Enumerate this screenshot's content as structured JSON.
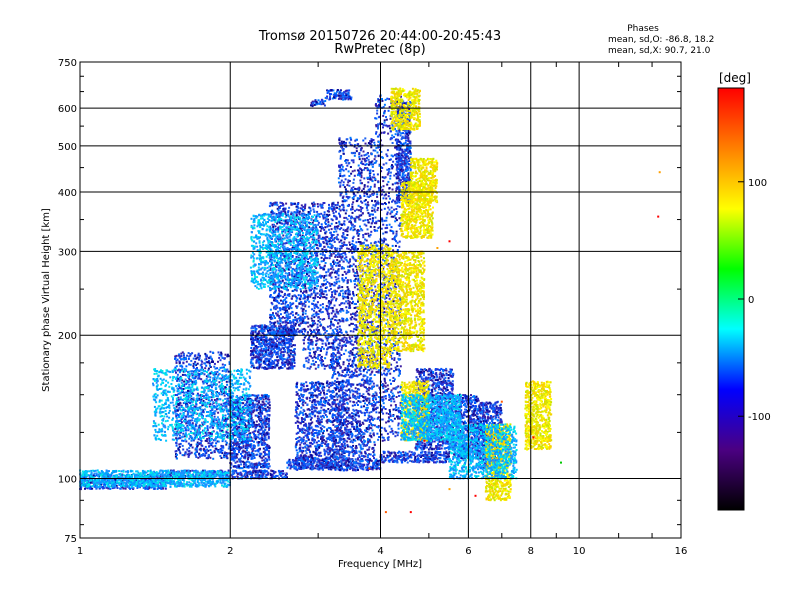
{
  "chart_data": {
    "type": "scatter",
    "title": "Tromsø 20150726 20:44:00-20:45:43",
    "subtitle": "RwPretec (8p)",
    "xlabel": "Frequency [MHz]",
    "ylabel": "Stationary phase Virtual Height [km]",
    "x_scale": "log",
    "y_scale": "log",
    "xlim": [
      1,
      16
    ],
    "ylim": [
      75,
      750
    ],
    "x_ticks": [
      1,
      2,
      4,
      6,
      8,
      10,
      16
    ],
    "x_tick_labels": [
      "1",
      "2",
      "4",
      "6",
      "8",
      "10",
      "16"
    ],
    "y_ticks": [
      75,
      100,
      200,
      300,
      400,
      500,
      600,
      750
    ],
    "y_tick_labels": [
      "75",
      "100",
      "200",
      "300",
      "400",
      "500",
      "600",
      "750"
    ],
    "grid": true,
    "legend": {
      "title": "Phases",
      "lines": [
        "mean, sd,O: -86.8, 18.2",
        "mean, sd,X: 90.7, 21.0"
      ],
      "placement": "top-right"
    },
    "colorbar": {
      "label": "[deg]",
      "range": [
        -180,
        180
      ],
      "ticks": [
        -100,
        0,
        100
      ],
      "tick_labels": [
        "-100",
        "0",
        "100"
      ],
      "colormap": [
        "#000000",
        "#4b0082",
        "#0000ff",
        "#00ffff",
        "#00ff00",
        "#ffff00",
        "#ff8000",
        "#ff0000"
      ]
    },
    "series": [
      {
        "mode": "O",
        "color": "#1e3cdc",
        "mean_phase": -86.8,
        "sd": 18.2,
        "clusters": [
          {
            "f": [
              1.0,
              1.5
            ],
            "h": [
              95,
              102
            ]
          },
          {
            "f": [
              1.5,
              2.6
            ],
            "h": [
              100,
              104
            ]
          },
          {
            "f": [
              2.6,
              4.0
            ],
            "h": [
              104,
              110
            ]
          },
          {
            "f": [
              4.0,
              5.5
            ],
            "h": [
              108,
              114
            ]
          },
          {
            "f": [
              1.55,
              2.0
            ],
            "h": [
              110,
              185
            ]
          },
          {
            "f": [
              2.0,
              2.4
            ],
            "h": [
              105,
              150
            ]
          },
          {
            "f": [
              2.2,
              2.7
            ],
            "h": [
              170,
              210
            ]
          },
          {
            "f": [
              2.4,
              2.8
            ],
            "h": [
              200,
              380
            ]
          },
          {
            "f": [
              2.7,
              3.4
            ],
            "h": [
              105,
              160
            ]
          },
          {
            "f": [
              2.8,
              3.3
            ],
            "h": [
              170,
              380
            ]
          },
          {
            "f": [
              3.2,
              3.9
            ],
            "h": [
              110,
              200
            ]
          },
          {
            "f": [
              3.3,
              3.9
            ],
            "h": [
              200,
              520
            ]
          },
          {
            "f": [
              3.1,
              3.5
            ],
            "h": [
              625,
              655
            ]
          },
          {
            "f": [
              3.9,
              4.4
            ],
            "h": [
              120,
              640
            ]
          },
          {
            "f": [
              4.3,
              4.6
            ],
            "h": [
              380,
              620
            ]
          },
          {
            "f": [
              5.6,
              6.3
            ],
            "h": [
              110,
              150
            ]
          },
          {
            "f": [
              6.3,
              7.0
            ],
            "h": [
              105,
              145
            ]
          },
          {
            "f": [
              4.7,
              5.6
            ],
            "h": [
              115,
              170
            ]
          },
          {
            "f": [
              2.9,
              3.1
            ],
            "h": [
              605,
              625
            ]
          }
        ]
      },
      {
        "mode": "X",
        "color": "#e6e600",
        "mean_phase": 90.7,
        "sd": 21.0,
        "clusters": [
          {
            "f": [
              3.6,
              4.2
            ],
            "h": [
              170,
              310
            ]
          },
          {
            "f": [
              4.2,
              4.9
            ],
            "h": [
              185,
              300
            ]
          },
          {
            "f": [
              4.4,
              5.1
            ],
            "h": [
              320,
              420
            ]
          },
          {
            "f": [
              4.6,
              5.2
            ],
            "h": [
              380,
              470
            ]
          },
          {
            "f": [
              4.2,
              4.8
            ],
            "h": [
              540,
              660
            ]
          },
          {
            "f": [
              4.4,
              5.0
            ],
            "h": [
              120,
              160
            ]
          },
          {
            "f": [
              7.8,
              8.8
            ],
            "h": [
              115,
              160
            ]
          },
          {
            "f": [
              6.5,
              7.3
            ],
            "h": [
              90,
              130
            ]
          }
        ]
      },
      {
        "mode": "mixed",
        "color": "#00c8ff",
        "clusters": [
          {
            "f": [
              1.0,
              2.0
            ],
            "h": [
              96,
              104
            ]
          },
          {
            "f": [
              1.4,
              2.2
            ],
            "h": [
              120,
              170
            ]
          },
          {
            "f": [
              2.2,
              3.0
            ],
            "h": [
              250,
              360
            ]
          },
          {
            "f": [
              4.4,
              5.8
            ],
            "h": [
              120,
              150
            ]
          },
          {
            "f": [
              5.5,
              7.5
            ],
            "h": [
              100,
              130
            ]
          }
        ]
      },
      {
        "mode": "outliers",
        "color": "#ff5a00",
        "points": [
          [
            4.1,
            85
          ],
          [
            4.6,
            85
          ],
          [
            5.5,
            95
          ],
          [
            6.2,
            92
          ],
          [
            8.1,
            122
          ],
          [
            9.2,
            108
          ],
          [
            14.5,
            440
          ],
          [
            14.4,
            355
          ],
          [
            5.2,
            305
          ],
          [
            5.5,
            315
          ],
          [
            3.8,
            105
          ],
          [
            4.9,
            120
          ],
          [
            7.0,
            145
          ]
        ]
      }
    ]
  }
}
